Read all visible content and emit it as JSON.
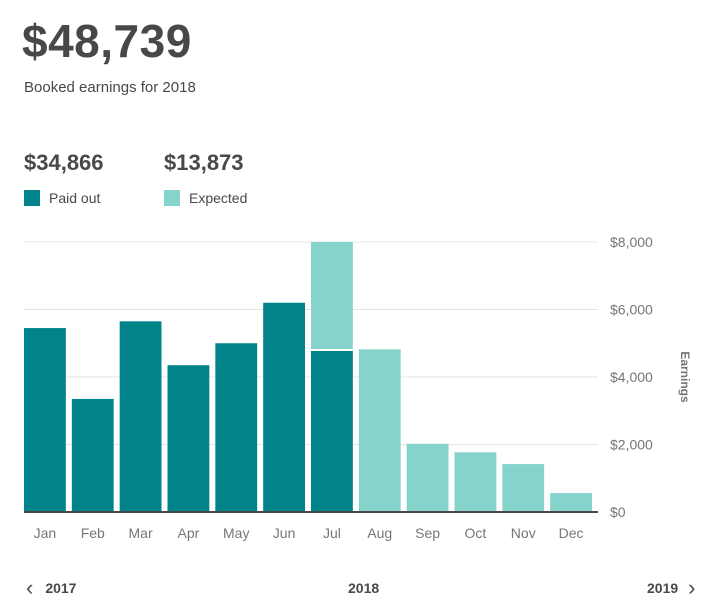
{
  "header": {
    "total": "$48,739",
    "subtitle": "Booked earnings for 2018"
  },
  "summary": {
    "paid_out": {
      "amount": "$34,866",
      "label": "Paid out",
      "color": "#008489"
    },
    "expected": {
      "amount": "$13,873",
      "label": "Expected",
      "color": "#86D3CC"
    }
  },
  "chart_data": {
    "type": "bar",
    "stacked": true,
    "categories": [
      "Jan",
      "Feb",
      "Mar",
      "Apr",
      "May",
      "Jun",
      "Jul",
      "Aug",
      "Sep",
      "Oct",
      "Nov",
      "Dec"
    ],
    "series": [
      {
        "name": "Paid out",
        "color": "#008489",
        "values": [
          5450,
          3350,
          5650,
          4350,
          5000,
          6200,
          4800,
          0,
          0,
          0,
          0,
          0
        ]
      },
      {
        "name": "Expected",
        "color": "#86D3CC",
        "values": [
          0,
          0,
          0,
          0,
          0,
          0,
          3200,
          4820,
          2020,
          1770,
          1420,
          560
        ]
      }
    ],
    "ylabel": "Earnings",
    "ylim": [
      0,
      8000
    ],
    "yticks": [
      "$0",
      "$2,000",
      "$4,000",
      "$6,000",
      "$8,000"
    ],
    "ytick_values": [
      0,
      2000,
      4000,
      6000,
      8000
    ],
    "y_axis_position": "right",
    "grid": true
  },
  "nav": {
    "prev_year": "2017",
    "current_year": "2018",
    "next_year": "2019",
    "prev_icon": "chevron-left-icon",
    "next_icon": "chevron-right-icon"
  }
}
